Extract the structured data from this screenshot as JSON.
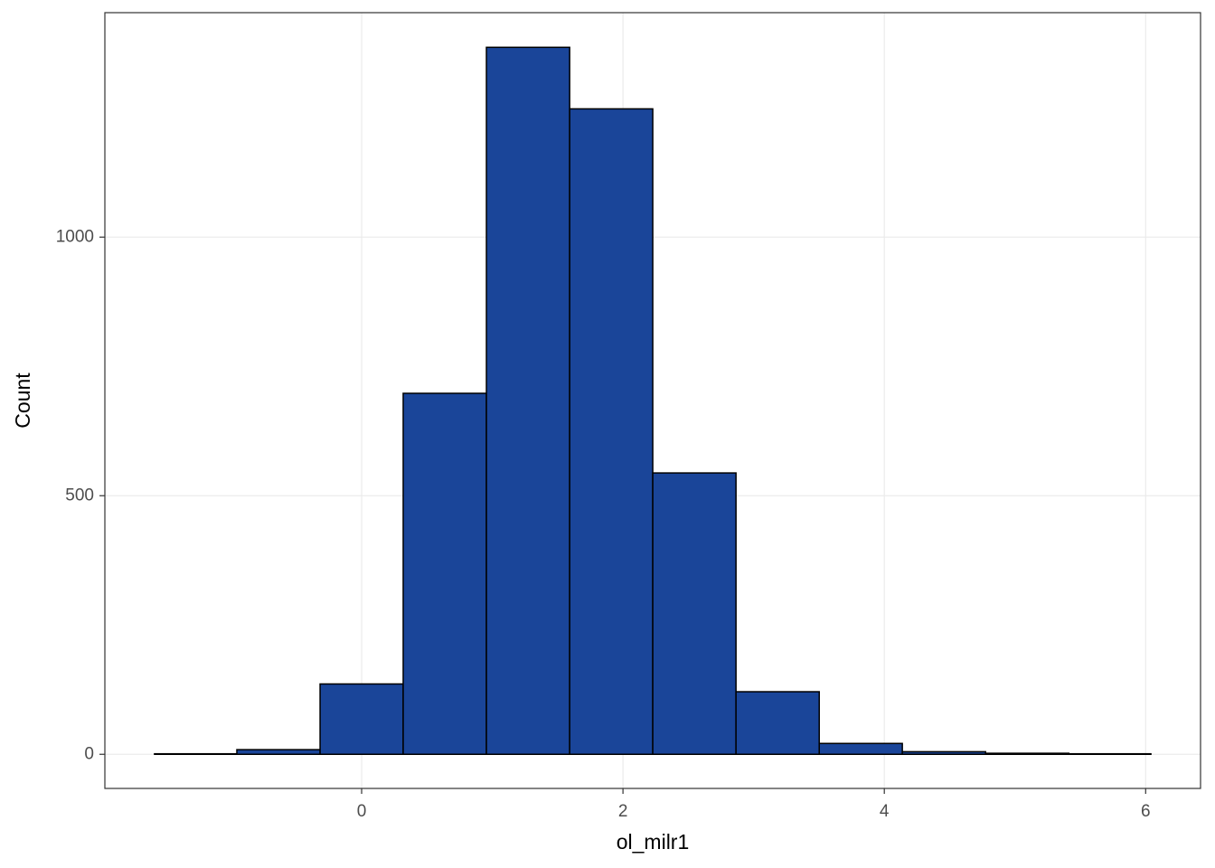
{
  "chart_data": {
    "type": "histogram",
    "x_label": "ol_milr1",
    "y_label": "Count",
    "bins": [
      -1.585,
      -0.955,
      -0.318,
      0.318,
      0.955,
      1.592,
      2.228,
      2.865,
      3.502,
      4.138,
      4.775,
      5.412,
      6.04
    ],
    "values": [
      1,
      9,
      136,
      698,
      1367,
      1248,
      544,
      121,
      21,
      5,
      2,
      1
    ],
    "color": "#1a4599",
    "xlim": [
      -1.965,
      6.42
    ],
    "ylim": [
      -66,
      1434
    ],
    "xticks": [
      0,
      2,
      4,
      6
    ],
    "yticks": [
      0,
      500,
      1000
    ],
    "grid": true
  }
}
